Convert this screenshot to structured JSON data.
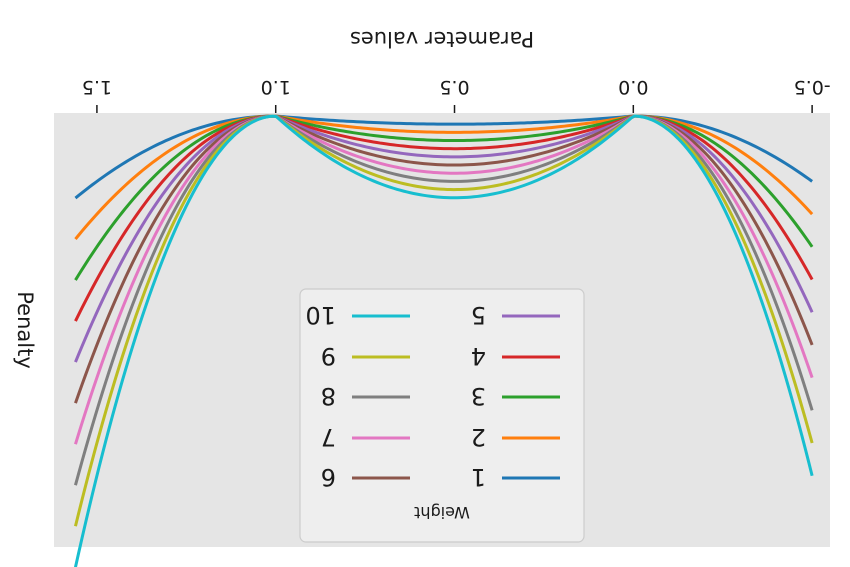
{
  "chart_data": {
    "type": "line",
    "orientation": "rotated 180 degrees",
    "xlabel": "Parameter values",
    "ylabel": "Penalty",
    "xticks": [
      "-0.5",
      "0.0",
      "0.5",
      "1.0",
      "1.5"
    ],
    "xlim": [
      -0.5,
      1.5
    ],
    "grid": false,
    "legend": {
      "title": "Weight",
      "location": "lower center",
      "columns": 2
    },
    "x": [
      -0.5,
      0.0,
      0.5,
      1.0,
      1.5
    ],
    "series": [
      {
        "name": "1",
        "color": "#1f77b4",
        "values": [
          2.0,
          0.0,
          0.25,
          0.0,
          2.0
        ]
      },
      {
        "name": "2",
        "color": "#ff7f0e",
        "values": [
          3.0,
          0.0,
          0.5,
          0.0,
          3.0
        ]
      },
      {
        "name": "3",
        "color": "#2ca02c",
        "values": [
          4.0,
          0.0,
          0.75,
          0.0,
          4.0
        ]
      },
      {
        "name": "4",
        "color": "#d62728",
        "values": [
          5.0,
          0.0,
          1.0,
          0.0,
          5.0
        ]
      },
      {
        "name": "5",
        "color": "#9467bd",
        "values": [
          6.0,
          0.0,
          1.25,
          0.0,
          6.0
        ]
      },
      {
        "name": "6",
        "color": "#8c564b",
        "values": [
          7.0,
          0.0,
          1.5,
          0.0,
          7.0
        ]
      },
      {
        "name": "7",
        "color": "#e377c2",
        "values": [
          8.0,
          0.0,
          1.75,
          0.0,
          8.0
        ]
      },
      {
        "name": "8",
        "color": "#7f7f7f",
        "values": [
          9.0,
          0.0,
          2.0,
          0.0,
          9.0
        ]
      },
      {
        "name": "9",
        "color": "#bcbd22",
        "values": [
          10.0,
          0.0,
          2.25,
          0.0,
          10.0
        ]
      },
      {
        "name": "10",
        "color": "#17becf",
        "values": [
          11.0,
          0.0,
          2.5,
          0.0,
          11.0
        ]
      }
    ],
    "colors": {
      "plot_background": "#e5e5e5",
      "legend_background": "#eeeeee"
    }
  }
}
